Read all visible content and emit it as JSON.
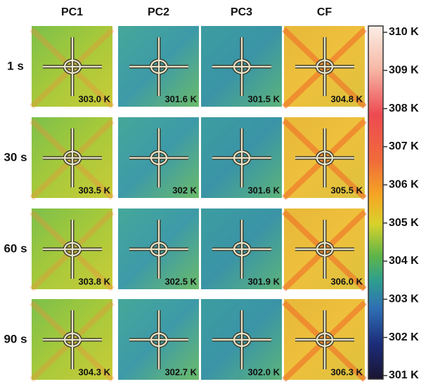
{
  "columns": [
    "PC1",
    "PC2",
    "PC3",
    "CF"
  ],
  "rows": [
    {
      "label": "1 s",
      "cells": [
        "303.0 K",
        "301.6 K",
        "301.5 K",
        "304.8 K"
      ]
    },
    {
      "label": "30 s",
      "cells": [
        "303.5 K",
        "302 K",
        "301.6 K",
        "305.5 K"
      ]
    },
    {
      "label": "60 s",
      "cells": [
        "303.8 K",
        "302.5 K",
        "301.9 K",
        "306.0 K"
      ]
    },
    {
      "label": "90 s",
      "cells": [
        "304.3 K",
        "302.7 K",
        "302.0 K",
        "306.3 K"
      ]
    }
  ],
  "colorbar": {
    "ticks": [
      "310 K",
      "309 K",
      "308 K",
      "307 K",
      "306 K",
      "305 K",
      "304 K",
      "303 K",
      "302 K",
      "301 K"
    ]
  }
}
